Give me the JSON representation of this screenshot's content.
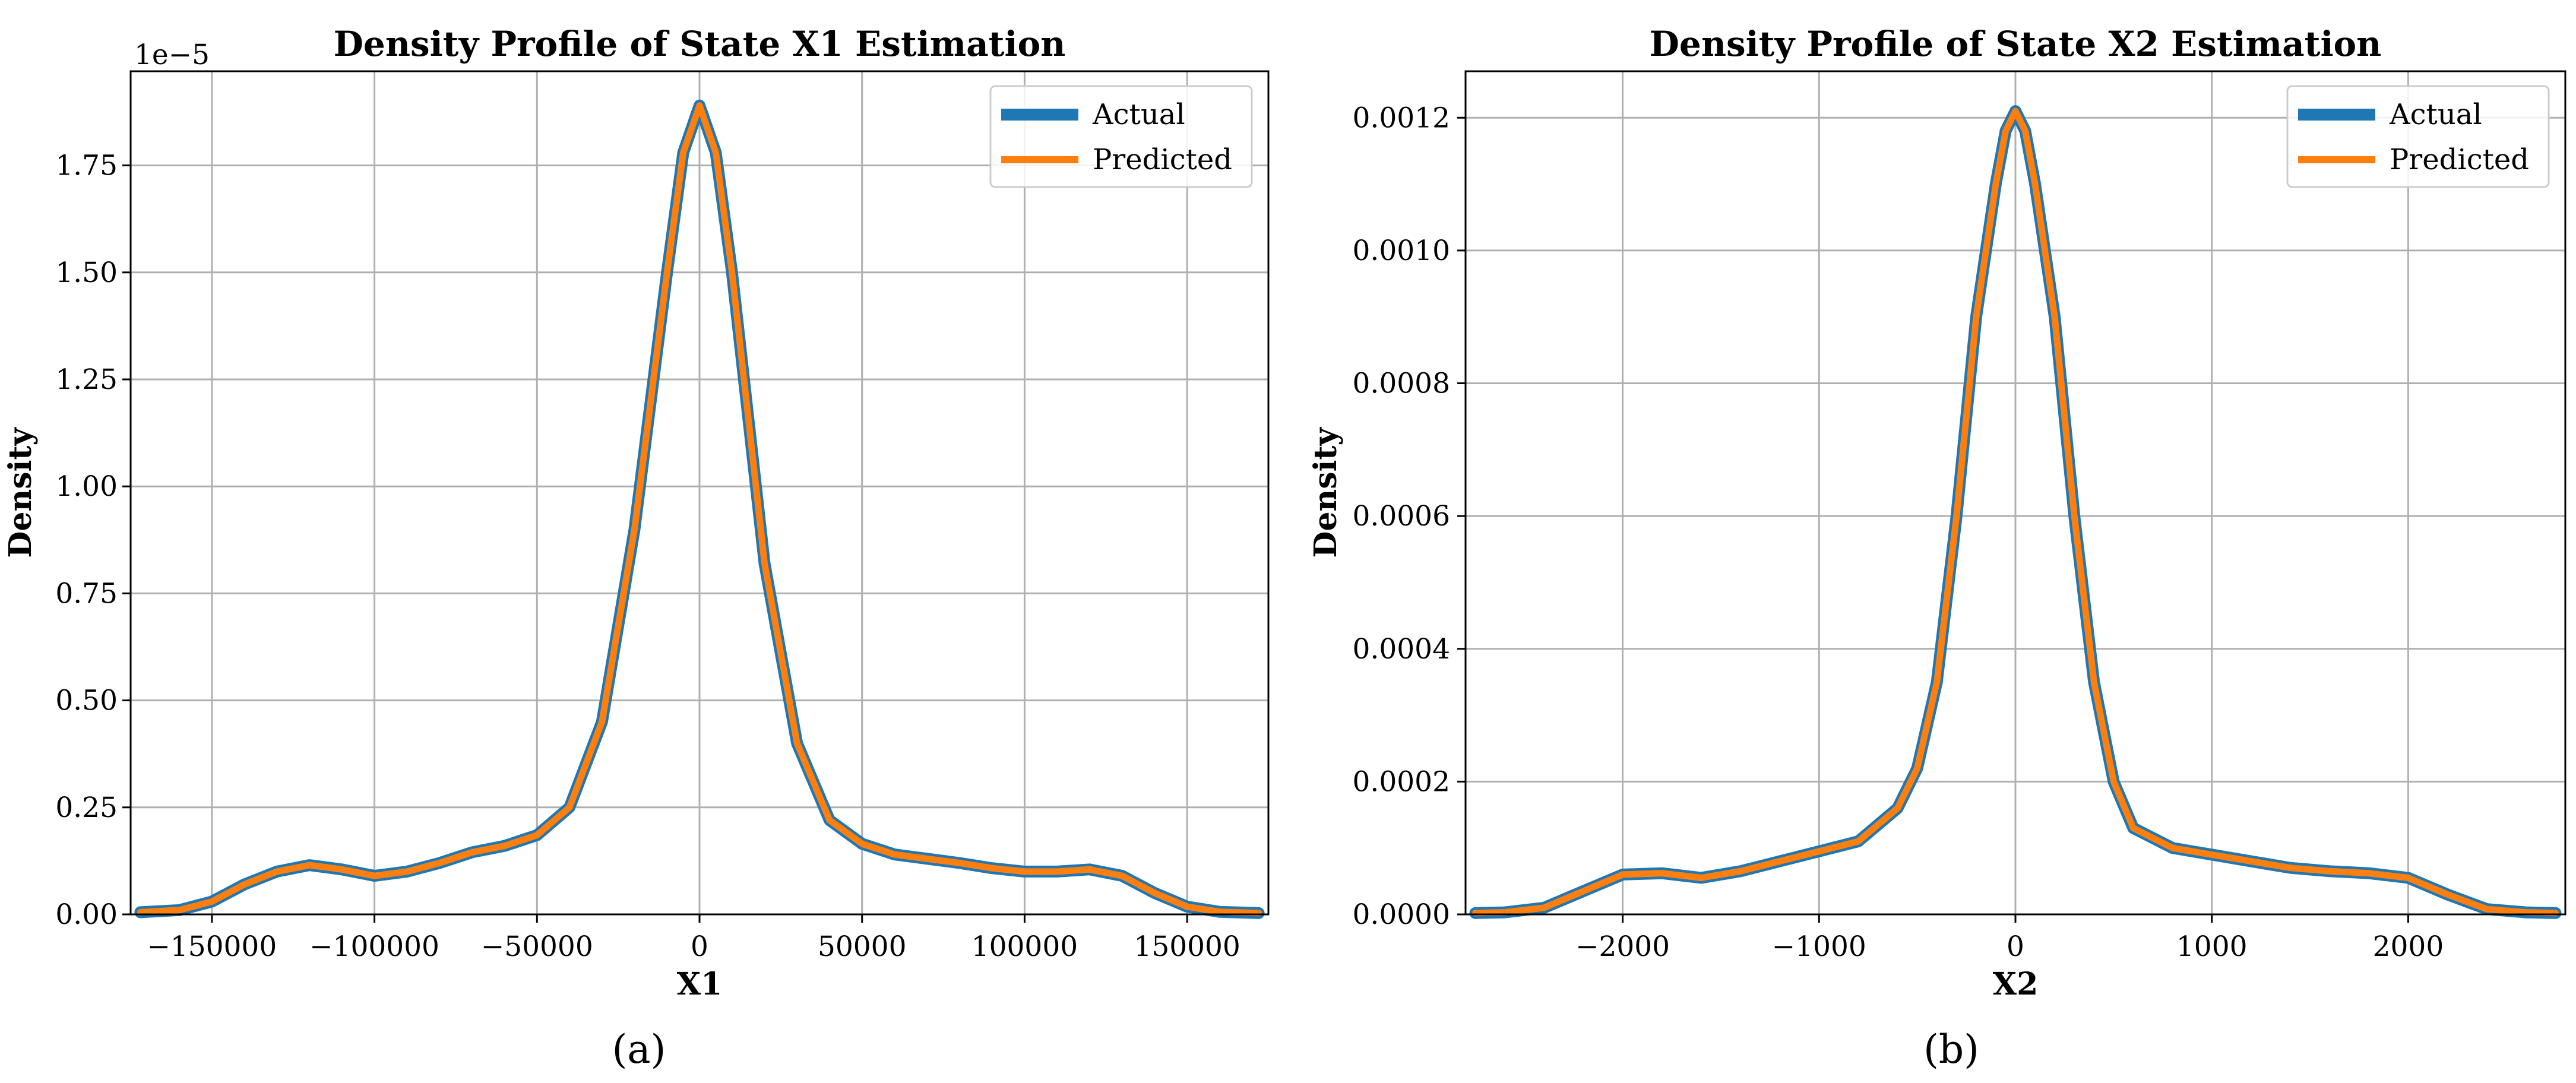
{
  "captions": [
    "(a)",
    "(b)"
  ],
  "colors": {
    "actual": "#1f77b4",
    "predicted": "#ff7f0e",
    "grid": "#b0b0b0"
  },
  "chart_data": [
    {
      "type": "line",
      "title": "Density Profile of State X1 Estimation",
      "xlabel": "X1",
      "ylabel": "Density",
      "offset_label": "1e−5",
      "xlim": [
        -175000,
        175000
      ],
      "ylim": [
        0,
        1.97
      ],
      "xticks": [
        -150000,
        -100000,
        -50000,
        0,
        50000,
        100000,
        150000
      ],
      "xtick_labels": [
        "−150000",
        "−100000",
        "−50000",
        "0",
        "50000",
        "100000",
        "150000"
      ],
      "yticks": [
        0.0,
        0.25,
        0.5,
        0.75,
        1.0,
        1.25,
        1.5,
        1.75
      ],
      "ytick_labels": [
        "0.00",
        "0.25",
        "0.50",
        "0.75",
        "1.00",
        "1.25",
        "1.50",
        "1.75"
      ],
      "grid": true,
      "legend": "top-right",
      "series": [
        {
          "name": "Actual",
          "x": [
            -172000,
            -160000,
            -150000,
            -140000,
            -130000,
            -120000,
            -110000,
            -100000,
            -90000,
            -80000,
            -70000,
            -60000,
            -50000,
            -40000,
            -30000,
            -20000,
            -10000,
            -5000,
            0,
            5000,
            10000,
            20000,
            30000,
            40000,
            50000,
            60000,
            70000,
            80000,
            90000,
            100000,
            110000,
            120000,
            130000,
            140000,
            150000,
            160000,
            172000
          ],
          "y": [
            0.005,
            0.01,
            0.03,
            0.07,
            0.1,
            0.115,
            0.105,
            0.09,
            0.1,
            0.12,
            0.145,
            0.16,
            0.185,
            0.25,
            0.45,
            0.9,
            1.5,
            1.78,
            1.89,
            1.78,
            1.5,
            0.82,
            0.4,
            0.22,
            0.165,
            0.14,
            0.13,
            0.12,
            0.108,
            0.1,
            0.1,
            0.105,
            0.09,
            0.05,
            0.018,
            0.006,
            0.003
          ]
        },
        {
          "name": "Predicted",
          "x": [
            -172000,
            -160000,
            -150000,
            -140000,
            -130000,
            -120000,
            -110000,
            -100000,
            -90000,
            -80000,
            -70000,
            -60000,
            -50000,
            -40000,
            -30000,
            -20000,
            -10000,
            -5000,
            0,
            5000,
            10000,
            20000,
            30000,
            40000,
            50000,
            60000,
            70000,
            80000,
            90000,
            100000,
            110000,
            120000,
            130000,
            140000,
            150000,
            160000,
            172000
          ],
          "y": [
            0.005,
            0.01,
            0.03,
            0.07,
            0.1,
            0.115,
            0.105,
            0.09,
            0.1,
            0.12,
            0.145,
            0.16,
            0.185,
            0.25,
            0.45,
            0.9,
            1.5,
            1.78,
            1.89,
            1.78,
            1.5,
            0.82,
            0.4,
            0.22,
            0.165,
            0.14,
            0.13,
            0.12,
            0.108,
            0.1,
            0.1,
            0.105,
            0.09,
            0.05,
            0.018,
            0.006,
            0.003
          ]
        }
      ]
    },
    {
      "type": "line",
      "title": "Density Profile of State X2 Estimation",
      "xlabel": "X2",
      "ylabel": "Density",
      "offset_label": "",
      "xlim": [
        -2800,
        2800
      ],
      "ylim": [
        0,
        0.00127
      ],
      "xticks": [
        -2000,
        -1000,
        0,
        1000,
        2000
      ],
      "xtick_labels": [
        "−2000",
        "−1000",
        "0",
        "1000",
        "2000"
      ],
      "yticks": [
        0.0,
        0.0002,
        0.0004,
        0.0006,
        0.0008,
        0.001,
        0.0012
      ],
      "ytick_labels": [
        "0.0000",
        "0.0002",
        "0.0004",
        "0.0006",
        "0.0008",
        "0.0010",
        "0.0012"
      ],
      "grid": true,
      "legend": "top-right",
      "series": [
        {
          "name": "Actual",
          "x": [
            -2750,
            -2600,
            -2400,
            -2200,
            -2000,
            -1800,
            -1600,
            -1400,
            -1200,
            -1000,
            -800,
            -600,
            -500,
            -400,
            -300,
            -200,
            -100,
            -50,
            0,
            50,
            100,
            200,
            300,
            400,
            500,
            600,
            800,
            1000,
            1200,
            1400,
            1600,
            1800,
            2000,
            2200,
            2400,
            2600,
            2750
          ],
          "y": [
            2e-06,
            3e-06,
            1e-05,
            3.5e-05,
            6e-05,
            6.2e-05,
            5.5e-05,
            6.5e-05,
            8e-05,
            9.5e-05,
            0.00011,
            0.00016,
            0.00022,
            0.00035,
            0.0006,
            0.0009,
            0.0011,
            0.00118,
            0.00121,
            0.00118,
            0.0011,
            0.0009,
            0.0006,
            0.00035,
            0.0002,
            0.00013,
            0.0001,
            9e-05,
            8e-05,
            7e-05,
            6.5e-05,
            6.2e-05,
            5.5e-05,
            3e-05,
            8e-06,
            3e-06,
            2e-06
          ]
        },
        {
          "name": "Predicted",
          "x": [
            -2750,
            -2600,
            -2400,
            -2200,
            -2000,
            -1800,
            -1600,
            -1400,
            -1200,
            -1000,
            -800,
            -600,
            -500,
            -400,
            -300,
            -200,
            -100,
            -50,
            0,
            50,
            100,
            200,
            300,
            400,
            500,
            600,
            800,
            1000,
            1200,
            1400,
            1600,
            1800,
            2000,
            2200,
            2400,
            2600,
            2750
          ],
          "y": [
            2e-06,
            3e-06,
            1e-05,
            3.5e-05,
            6e-05,
            6.2e-05,
            5.5e-05,
            6.5e-05,
            8e-05,
            9.5e-05,
            0.00011,
            0.00016,
            0.00022,
            0.00035,
            0.0006,
            0.0009,
            0.0011,
            0.00118,
            0.00121,
            0.00118,
            0.0011,
            0.0009,
            0.0006,
            0.00035,
            0.0002,
            0.00013,
            0.0001,
            9e-05,
            8e-05,
            7e-05,
            6.5e-05,
            6.2e-05,
            5.5e-05,
            3e-05,
            8e-06,
            3e-06,
            2e-06
          ]
        }
      ]
    }
  ]
}
